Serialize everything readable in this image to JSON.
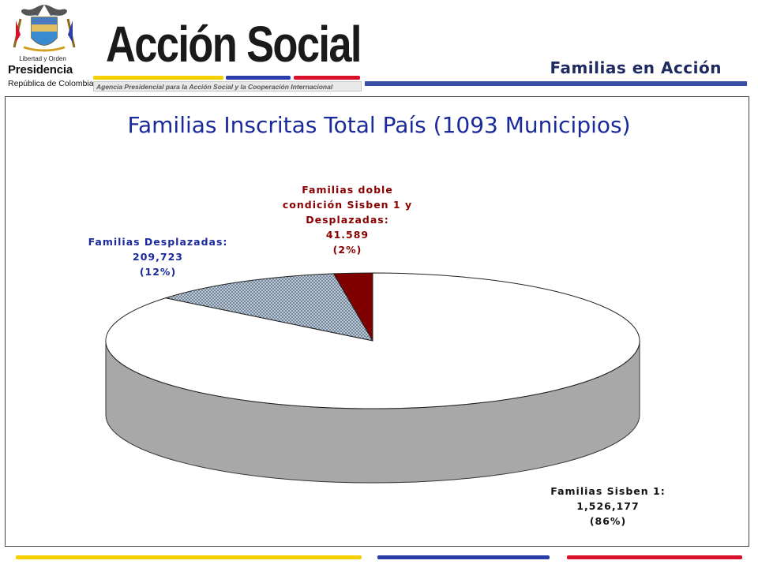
{
  "header": {
    "crest_motto": "Libertad y Orden",
    "crest_presidencia": "Presidencia",
    "crest_republica": "República de Colombia",
    "brand_name": "Acción Social",
    "brand_tagline": "Agencia Presidencial para la Acción Social y la Cooperación Internacional",
    "program_title": "Familias en Acción"
  },
  "colors": {
    "yellow": "#f4d000",
    "blue": "#2a3ca8",
    "red": "#d8102a",
    "title_blue": "#1a2a9c",
    "dark_red": "#800000"
  },
  "chart_data": {
    "type": "pie",
    "title": "Familias Inscritas Total País (1093 Municipios)",
    "slices": [
      {
        "name": "Familias Sisben 1",
        "value": 1526177,
        "percent": 86,
        "label_lines": [
          "Familias Sisben 1:",
          "1,526,177",
          "(86%)"
        ],
        "color": "#ffffff"
      },
      {
        "name": "Familias Desplazadas",
        "value": 209723,
        "percent": 12,
        "label_lines": [
          "Familias Desplazadas:",
          "209,723",
          "(12%)"
        ],
        "color": "#b8c8d8"
      },
      {
        "name": "Familias doble condición Sisben 1 y Desplazadas",
        "value": 41589,
        "percent": 2,
        "label_lines": [
          "Familias doble",
          "condición Sisben 1 y",
          "Desplazadas:",
          "41.589",
          "(2%)"
        ],
        "color": "#800000"
      }
    ]
  }
}
